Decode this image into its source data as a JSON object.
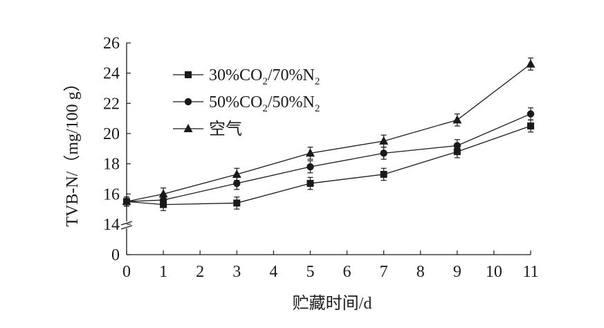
{
  "chart_data": {
    "type": "line",
    "title": "",
    "xlabel": "贮藏时间/d",
    "ylabel": "TVB-N/（mg/100 g）",
    "x": [
      0,
      1,
      3,
      5,
      7,
      9,
      11
    ],
    "xticks": [
      "0",
      "1",
      "2",
      "3",
      "4",
      "5",
      "6",
      "7",
      "8",
      "9",
      "10",
      "11"
    ],
    "yticks": [
      "0",
      "14",
      "16",
      "18",
      "20",
      "22",
      "24",
      "26"
    ],
    "ylim": [
      14,
      26
    ],
    "y_axis_break": true,
    "grid": false,
    "legend_position": "top-left",
    "series": [
      {
        "name": "30%CO2/70%N2",
        "name_parts": {
          "a": "30%CO",
          "sub1": "2",
          "b": "/70%N",
          "sub2": "2"
        },
        "marker": "square",
        "values": [
          15.5,
          15.3,
          15.4,
          16.7,
          17.3,
          18.8,
          20.5
        ],
        "errors": [
          0.3,
          0.4,
          0.4,
          0.4,
          0.4,
          0.4,
          0.4
        ]
      },
      {
        "name": "50%CO2/50%N2",
        "name_parts": {
          "a": "50%CO",
          "sub1": "2",
          "b": "/50%N",
          "sub2": "2"
        },
        "marker": "circle",
        "values": [
          15.5,
          15.6,
          16.7,
          17.8,
          18.7,
          19.2,
          21.3
        ],
        "errors": [
          0.3,
          0.4,
          0.4,
          0.4,
          0.4,
          0.4,
          0.4
        ]
      },
      {
        "name": "空气",
        "name_parts": {
          "a": "空气"
        },
        "marker": "triangle",
        "values": [
          15.5,
          16.0,
          17.3,
          18.7,
          19.5,
          20.9,
          24.6
        ],
        "errors": [
          0.3,
          0.4,
          0.4,
          0.4,
          0.4,
          0.4,
          0.4
        ]
      }
    ],
    "colors": {
      "line": "#1a1a1a",
      "background": "#ffffff"
    }
  }
}
